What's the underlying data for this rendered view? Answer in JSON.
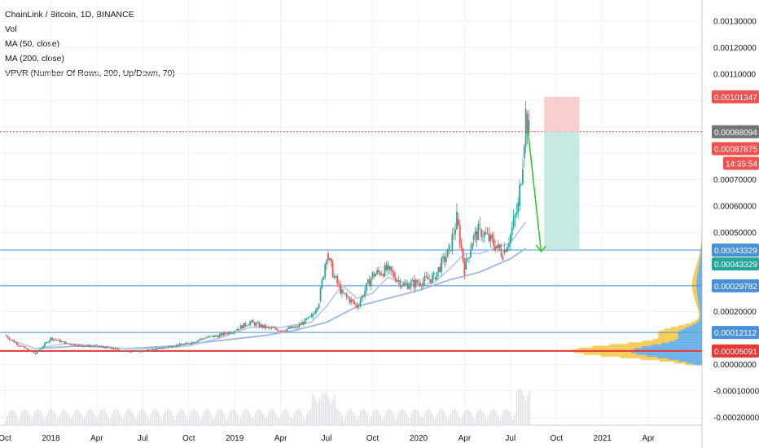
{
  "legend": {
    "symbol": "ChainLink / Bitcoin, 1D, BINANCE",
    "vol": "Vol",
    "ma50": "MA (50, close)",
    "ma200": "MA (200, close)",
    "vpvr": "VPVR (Number Of Rows, 200, Up/Down, 70)"
  },
  "colors": {
    "up": "#26a69a",
    "down": "#ef5350",
    "price_line": "#ef5350",
    "ma50": "#b2c8e6",
    "ma200": "#9fb8de",
    "hline": "#4a90d9",
    "support": "#e53935",
    "arrow": "#22cc22",
    "vpvr_up": "#f5c542",
    "vpvr_down": "#5aa9e6"
  },
  "chart_data": {
    "type": "candlestick",
    "y_axis": {
      "ylim": [
        -0.00023,
        0.00138
      ],
      "ticks": [
        -0.0002,
        -0.0001,
        0.0,
        0.0001,
        0.0002,
        0.0003,
        0.0004,
        0.0005,
        0.0006,
        0.0007,
        0.0008,
        0.0009,
        0.001,
        0.0011,
        0.0012,
        0.0013
      ],
      "tick_labels": [
        "-0.00020000",
        "-0.00010000",
        "0.00000000",
        "",
        "0.00020000",
        "",
        "",
        "0.00050000",
        "0.00060000",
        "0.00070000",
        "",
        "",
        "",
        "0.00110000",
        "0.00120000",
        "0.00130000"
      ]
    },
    "x_axis": {
      "tick_labels": [
        "Oct",
        "2018",
        "Apr",
        "Jul",
        "Oct",
        "2019",
        "Apr",
        "Jul",
        "Oct",
        "2020",
        "Apr",
        "Jul",
        "Oct",
        "2021",
        "Apr"
      ],
      "tick_months": [
        0,
        3,
        6,
        9,
        12,
        15,
        18,
        21,
        24,
        27,
        30,
        33,
        36,
        39,
        42
      ],
      "xlim_months": [
        0,
        45.5
      ]
    },
    "horizontal_levels": [
      0.00043329,
      0.00029782,
      0.00012112
    ],
    "support_level": 5.091e-05,
    "current_price": 0.00088094,
    "price_badges": [
      {
        "value": "0.00101347",
        "color": "#ef5350"
      },
      {
        "value": "0.00088094",
        "color": "#757575"
      },
      {
        "value": "0.00087875",
        "color": "#ef5350"
      },
      {
        "value": "14:35:54",
        "color": "#ef5350"
      },
      {
        "value": "0.00043329",
        "color": "#4a90d9"
      },
      {
        "value": "0.00043329",
        "color": "#26a69a"
      },
      {
        "value": "0.00029782",
        "color": "#4a90d9"
      },
      {
        "value": "0.00012112",
        "color": "#4a90d9"
      },
      {
        "value": "0.00005091",
        "color": "#e53935"
      }
    ],
    "price_path": [
      [
        0,
        0.00011
      ],
      [
        1,
        7e-05
      ],
      [
        2,
        4e-05
      ],
      [
        3,
        0.0001
      ],
      [
        4,
        8e-05
      ],
      [
        5,
        7e-05
      ],
      [
        6,
        7e-05
      ],
      [
        7,
        6e-05
      ],
      [
        8,
        5e-05
      ],
      [
        9,
        5e-05
      ],
      [
        10,
        6e-05
      ],
      [
        11,
        7e-05
      ],
      [
        12,
        8e-05
      ],
      [
        13,
        0.0001
      ],
      [
        14,
        0.00011
      ],
      [
        15,
        0.00013
      ],
      [
        16,
        0.00016
      ],
      [
        17,
        0.00014
      ],
      [
        18,
        0.00013
      ],
      [
        19,
        0.00014
      ],
      [
        20,
        0.00018
      ],
      [
        20.5,
        0.00024
      ],
      [
        21,
        0.00042
      ],
      [
        21.5,
        0.00033
      ],
      [
        22,
        0.00027
      ],
      [
        23,
        0.00022
      ],
      [
        24,
        0.00034
      ],
      [
        25,
        0.00036
      ],
      [
        26,
        0.0003
      ],
      [
        27,
        0.00031
      ],
      [
        28,
        0.00033
      ],
      [
        29,
        0.00043
      ],
      [
        29.5,
        0.00055
      ],
      [
        30,
        0.00036
      ],
      [
        30.5,
        0.00047
      ],
      [
        31,
        0.00051
      ],
      [
        32,
        0.00045
      ],
      [
        32.5,
        0.00042
      ],
      [
        33,
        0.00049
      ],
      [
        33.5,
        0.0006
      ],
      [
        33.8,
        0.00078
      ],
      [
        34.0,
        0.00095
      ],
      [
        34.2,
        0.00088
      ]
    ],
    "ma50": [
      [
        0.5,
        9e-05
      ],
      [
        2,
        6e-05
      ],
      [
        4,
        8e-05
      ],
      [
        6,
        7e-05
      ],
      [
        8,
        6e-05
      ],
      [
        10,
        6e-05
      ],
      [
        12,
        7e-05
      ],
      [
        14,
        0.0001
      ],
      [
        16,
        0.00014
      ],
      [
        18,
        0.00014
      ],
      [
        20,
        0.00016
      ],
      [
        21,
        0.00022
      ],
      [
        22,
        0.0003
      ],
      [
        23,
        0.00025
      ],
      [
        24,
        0.00027
      ],
      [
        25,
        0.00033
      ],
      [
        26,
        0.00031
      ],
      [
        27,
        0.0003
      ],
      [
        28,
        0.00031
      ],
      [
        29,
        0.00036
      ],
      [
        30,
        0.00042
      ],
      [
        31,
        0.00042
      ],
      [
        32,
        0.00044
      ],
      [
        33,
        0.00046
      ],
      [
        34,
        0.00054
      ]
    ],
    "ma200": [
      [
        2,
        6e-05
      ],
      [
        5,
        7e-05
      ],
      [
        8,
        6e-05
      ],
      [
        11,
        7e-05
      ],
      [
        14,
        9e-05
      ],
      [
        17,
        0.00011
      ],
      [
        19,
        0.00013
      ],
      [
        21,
        0.00016
      ],
      [
        23,
        0.00022
      ],
      [
        25,
        0.00025
      ],
      [
        27,
        0.00028
      ],
      [
        29,
        0.00032
      ],
      [
        31,
        0.00035
      ],
      [
        33,
        0.0004
      ],
      [
        34,
        0.00044
      ]
    ],
    "volume_hint": "light gray volume bars along bottom"
  }
}
